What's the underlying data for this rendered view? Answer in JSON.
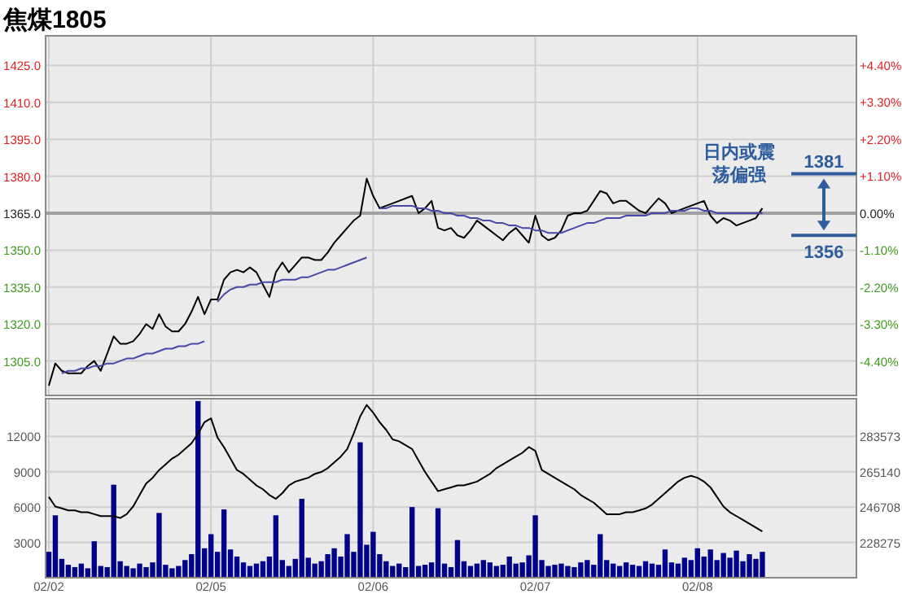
{
  "chart_data": [
    {
      "type": "line",
      "title": "焦煤1805",
      "categories": [
        null,
        null,
        null,
        null,
        null,
        null,
        null,
        null,
        null,
        null,
        null,
        null,
        null,
        null,
        null,
        null,
        null,
        null,
        null,
        null,
        null,
        null,
        null,
        null,
        null,
        null,
        null,
        null,
        null,
        null,
        null,
        null,
        null,
        null,
        null,
        null,
        null,
        null,
        null,
        null,
        null,
        null,
        null,
        null,
        null,
        null,
        null,
        null,
        null,
        null,
        null,
        null,
        null,
        null,
        null,
        null,
        null,
        null,
        null,
        null,
        null,
        null,
        null,
        null,
        null,
        null,
        null,
        null,
        null,
        null,
        null,
        null,
        null,
        null,
        null,
        null,
        null,
        null,
        null,
        null,
        null,
        null,
        null,
        null,
        null,
        null,
        null,
        null,
        null,
        null,
        null,
        null,
        null,
        null,
        null,
        null,
        null,
        null,
        null,
        null,
        null,
        null,
        null,
        null,
        null,
        null,
        null,
        null,
        null,
        null,
        null,
        null,
        null,
        null,
        null,
        null,
        null,
        null,
        null,
        null,
        null,
        null,
        null,
        null,
        null
      ],
      "ylim": [
        1291,
        1437
      ],
      "y2lim": [
        -5.42,
        5.27
      ],
      "yticks": [
        {
          "value": 1305,
          "label": "1305.0"
        },
        {
          "value": 1320,
          "label": "1320.0"
        },
        {
          "value": 1335,
          "label": "1335.0"
        },
        {
          "value": 1350,
          "label": "1350.0"
        },
        {
          "value": 1365,
          "label": "1365.0"
        },
        {
          "value": 1380,
          "label": "1380.0"
        },
        {
          "value": 1395,
          "label": "1395.0"
        },
        {
          "value": 1410,
          "label": "1410.0"
        },
        {
          "value": 1425,
          "label": "1425.0"
        }
      ],
      "y2ticks": [
        {
          "value": 4.4,
          "label": "+4.40%"
        },
        {
          "value": 3.3,
          "label": "+3.30%"
        },
        {
          "value": 2.2,
          "label": "+2.20%"
        },
        {
          "value": 1.1,
          "label": "+1.10%"
        },
        {
          "value": 0,
          "label": "0.00%"
        },
        {
          "value": -1.1,
          "label": "-1.10%"
        },
        {
          "value": -2.2,
          "label": "-2.20%"
        },
        {
          "value": -3.3,
          "label": "-3.30%"
        },
        {
          "value": -4.4,
          "label": "-4.40%"
        }
      ],
      "tick_labels": "y",
      "grid": true,
      "ref_lines": [
        {
          "axis": "y",
          "value": 1365,
          "color": "#a0a0a0"
        },
        {
          "axis": "y",
          "value": 1381,
          "label": "1381",
          "color": "#2e5d9e"
        },
        {
          "axis": "y",
          "value": 1356,
          "label": "1356",
          "color": "#2e5d9e"
        }
      ],
      "series": [
        {
          "color": "#000000",
          "values": [
            1295,
            1304,
            1301,
            1300,
            1300,
            1300,
            1303,
            1305,
            1301,
            1308,
            1315,
            1312,
            1312,
            1313,
            1316,
            1320,
            1318,
            1324,
            1319,
            1317,
            1317,
            1320,
            1325,
            1331,
            1324,
            1330,
            1330,
            1338,
            1341,
            1342,
            1341,
            1343,
            1341,
            1336,
            1331,
            1341,
            1345,
            1341,
            1344,
            1347,
            1347,
            1346,
            1346,
            1349,
            1353,
            1356,
            1359,
            1362,
            1364,
            1379,
            1372,
            1367,
            1368,
            1369,
            1370,
            1371,
            1372,
            1365,
            1367,
            1370,
            1359,
            1358,
            1359,
            1356,
            1355,
            1358,
            1362,
            1360,
            1358,
            1356,
            1354,
            1357,
            1359,
            1356,
            1353,
            1364,
            1356,
            1354,
            1355,
            1358,
            1364,
            1365,
            1365,
            1366,
            1370,
            1374,
            1373,
            1369,
            1370,
            1370,
            1368,
            1366,
            1365,
            1368,
            1371,
            1369,
            1365,
            1366,
            1367,
            1368,
            1369,
            1370,
            1364,
            1361,
            1363,
            1362,
            1360,
            1361,
            1362,
            1363,
            1367,
            null,
            null,
            null,
            null,
            null,
            null,
            null,
            null,
            null,
            null,
            null,
            null,
            null,
            null
          ]
        },
        {
          "color": "#4848a8",
          "values": [
            null,
            null,
            1300,
            1301,
            1301,
            1302,
            1302,
            1303,
            1303,
            1304,
            1304,
            1305,
            1306,
            1306,
            1307,
            1308,
            1308,
            1309,
            1310,
            1310,
            1311,
            1311,
            1312,
            1312,
            1313,
            null,
            1329,
            1332,
            1334,
            1335,
            1335,
            1336,
            1336,
            1337,
            1337,
            1337,
            1338,
            1338,
            1338,
            1339,
            1339,
            1340,
            1341,
            1342,
            1342,
            1343,
            1344,
            1345,
            1346,
            1347,
            null,
            1367,
            1367,
            1368,
            1368,
            1368,
            1368,
            1367,
            1367,
            1366,
            1366,
            1365,
            1365,
            1364,
            1364,
            1363,
            1363,
            1362,
            1362,
            1361,
            1361,
            1360,
            1360,
            1359,
            1359,
            1358,
            1358,
            1357,
            1357,
            1357,
            1358,
            1359,
            1360,
            1361,
            1361,
            1362,
            1363,
            1363,
            1363,
            1364,
            1364,
            1364,
            1364,
            1365,
            1365,
            1365,
            1366,
            1366,
            1366,
            1367,
            1367,
            1366,
            1366,
            1365,
            1365,
            1365,
            1365,
            1365,
            1365,
            1365,
            1365,
            null,
            null,
            null,
            null,
            null,
            null,
            null,
            null,
            null,
            null,
            null,
            null,
            null,
            null
          ]
        }
      ],
      "annotations": [
        "日内或震荡偏强"
      ]
    },
    {
      "type": "bar",
      "categories": [
        "02/02",
        null,
        null,
        null,
        null,
        null,
        null,
        null,
        null,
        null,
        null,
        null,
        null,
        null,
        null,
        null,
        null,
        null,
        null,
        null,
        null,
        null,
        null,
        null,
        null,
        "02/05",
        null,
        null,
        null,
        null,
        null,
        null,
        null,
        null,
        null,
        null,
        null,
        null,
        null,
        null,
        null,
        null,
        null,
        null,
        null,
        null,
        null,
        null,
        null,
        null,
        "02/06",
        null,
        null,
        null,
        null,
        null,
        null,
        null,
        null,
        null,
        null,
        null,
        null,
        null,
        null,
        null,
        null,
        null,
        null,
        null,
        null,
        null,
        null,
        null,
        null,
        "02/07",
        null,
        null,
        null,
        null,
        null,
        null,
        null,
        null,
        null,
        null,
        null,
        null,
        null,
        null,
        null,
        null,
        null,
        null,
        null,
        null,
        null,
        null,
        null,
        null,
        "02/08",
        null,
        null,
        null,
        null,
        null,
        null,
        null,
        null,
        null,
        null,
        null,
        null,
        null,
        null,
        null,
        null,
        null,
        null,
        null,
        null,
        null,
        null,
        null,
        null
      ],
      "ylim": [
        0,
        15200
      ],
      "y2lim": [
        209842,
        303234
      ],
      "yticks": [
        3000,
        6000,
        9000,
        12000
      ],
      "y2ticks": [
        228275,
        246708,
        265140,
        283573
      ],
      "grid": true,
      "series": [
        {
          "color": "#00008b",
          "values": [
            2200,
            5300,
            1600,
            1100,
            900,
            1200,
            800,
            3100,
            1000,
            900,
            7900,
            1400,
            1000,
            800,
            1200,
            900,
            1300,
            5500,
            1100,
            800,
            1000,
            1500,
            2000,
            15000,
            2500,
            3700,
            2200,
            5800,
            2400,
            1800,
            1300,
            1000,
            1200,
            1400,
            1800,
            5300,
            1500,
            1000,
            1600,
            6700,
            1700,
            1200,
            1400,
            2000,
            2500,
            1800,
            3700,
            2200,
            11500,
            2800,
            3900,
            2000,
            1400,
            1000,
            1200,
            900,
            6000,
            1000,
            1100,
            1300,
            5900,
            1200,
            900,
            3200,
            1400,
            1000,
            1200,
            1500,
            1300,
            1000,
            1100,
            1800,
            1200,
            1300,
            1900,
            5300,
            1500,
            1000,
            1100,
            1200,
            1000,
            900,
            1300,
            1500,
            1100,
            3700,
            1500,
            1200,
            1000,
            1300,
            1100,
            1000,
            1400,
            1200,
            1100,
            2400,
            1300,
            1200,
            1700,
            1500,
            2500,
            1800,
            2400,
            1500,
            2100,
            1700,
            2300,
            1400,
            2000,
            1600,
            2200,
            null,
            null,
            null,
            null,
            null,
            null,
            null,
            null,
            null,
            null,
            null,
            null,
            null,
            null
          ]
        },
        {
          "type": "line",
          "axis": "y2",
          "color": "#000000",
          "values": [
            252000,
            247000,
            246000,
            245000,
            245000,
            244000,
            244000,
            243000,
            242000,
            242000,
            242000,
            241000,
            243000,
            247000,
            253000,
            259000,
            262000,
            266000,
            269000,
            272000,
            274000,
            277000,
            280000,
            285000,
            291000,
            293000,
            283000,
            278000,
            272000,
            266000,
            264000,
            261000,
            258000,
            256000,
            253000,
            251000,
            254000,
            258000,
            260000,
            261000,
            262000,
            264000,
            265000,
            267000,
            270000,
            273000,
            277000,
            285000,
            294000,
            300000,
            296000,
            291000,
            287000,
            282000,
            281000,
            279000,
            277000,
            271000,
            265000,
            260000,
            255000,
            256000,
            257000,
            258000,
            258000,
            259000,
            260000,
            262000,
            264000,
            267000,
            269000,
            271000,
            273000,
            275000,
            278000,
            276000,
            266000,
            264000,
            262000,
            260000,
            258000,
            256000,
            253000,
            251000,
            249000,
            246000,
            243000,
            243000,
            243000,
            244000,
            244000,
            245000,
            246000,
            248000,
            251000,
            254000,
            257000,
            260000,
            262000,
            263000,
            262000,
            260000,
            257000,
            252000,
            247000,
            244000,
            242000,
            240000,
            238000,
            236000,
            234000,
            null,
            null,
            null,
            null,
            null,
            null,
            null,
            null,
            null,
            null,
            null,
            null,
            null,
            null
          ]
        }
      ]
    }
  ]
}
